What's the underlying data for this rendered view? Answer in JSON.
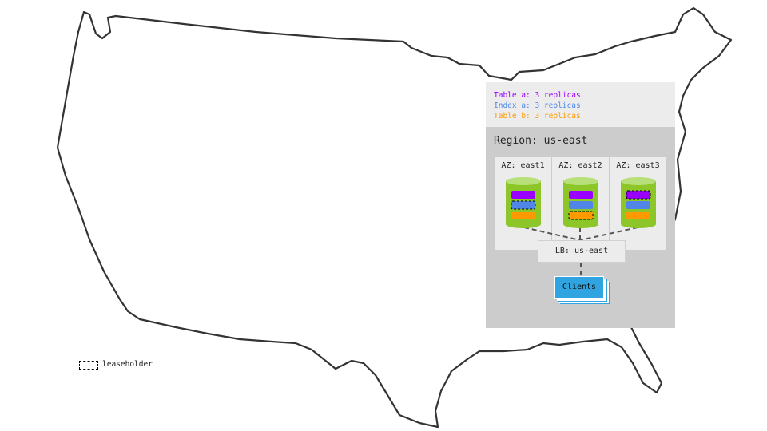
{
  "legend": [
    {
      "label": "Table a: 3 replicas",
      "color": "#9a00ff"
    },
    {
      "label": "Index a: 3 replicas",
      "color": "#4f86e8"
    },
    {
      "label": "Table b: 3 replicas",
      "color": "#ff9900"
    }
  ],
  "region": {
    "title": "Region: us-east"
  },
  "azs": [
    {
      "label": "AZ: east1",
      "leaseholder": "Index a"
    },
    {
      "label": "AZ: east2",
      "leaseholder": "Table b"
    },
    {
      "label": "AZ: east3",
      "leaseholder": "Table a"
    }
  ],
  "load_balancer": "LB: us-east",
  "clients": "Clients",
  "leaseholder_legend": "leaseholder",
  "colors": {
    "db": "#8cc628",
    "db_top": "#b8e07a",
    "panel": "#ececec",
    "region": "#cccccc",
    "clients": "#2fa4e0"
  }
}
